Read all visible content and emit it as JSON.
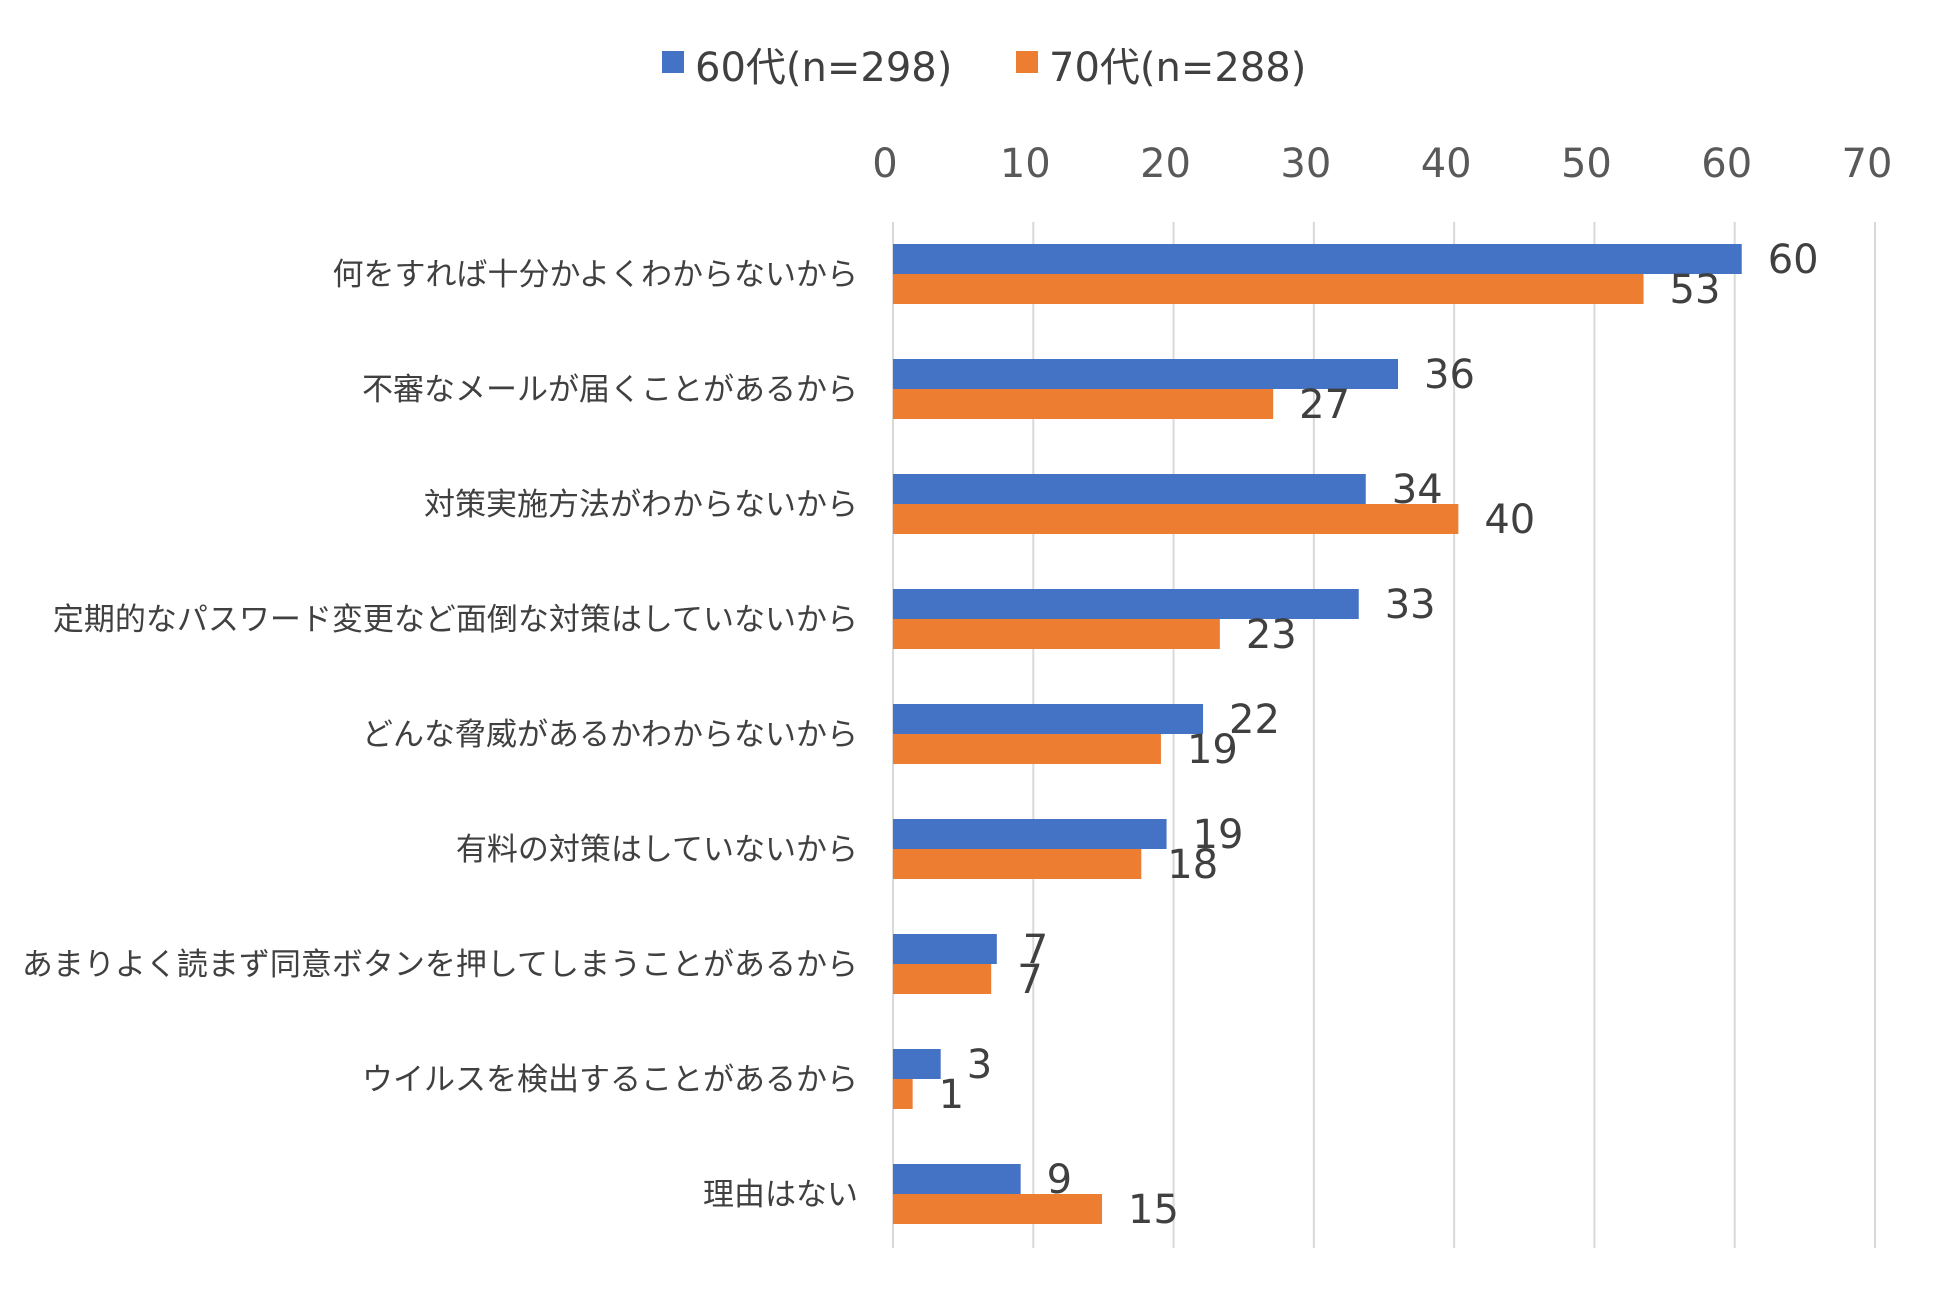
{
  "chart_data": {
    "type": "bar",
    "orientation": "horizontal",
    "title": "",
    "xlabel": "",
    "ylabel": "",
    "xlim": [
      0,
      70
    ],
    "xticks": [
      0,
      10,
      20,
      30,
      40,
      50,
      60,
      70
    ],
    "x_axis_position": "top",
    "grid": true,
    "legend_position": "top",
    "categories": [
      "何をすれば十分かよくわからないから",
      "不審なメールが届くことがあるから",
      "対策実施方法がわからないから",
      "定期的なパスワード変更など面倒な対策はしていないから",
      "どんな脅威があるかわからないから",
      "有料の対策はしていないから",
      "あまりよく読まず同意ボタンを押してしまうことがあるから",
      "ウイルスを検出することがあるから",
      "理由はない"
    ],
    "series": [
      {
        "name": "60代(n=298)",
        "color": "#4472C4",
        "values": [
          60.5,
          36,
          33.7,
          33.2,
          22.1,
          19.5,
          7.4,
          3.4,
          9.1
        ],
        "labels": [
          "60",
          "36",
          "34",
          "33",
          "22",
          "19",
          "7",
          "3",
          "9"
        ]
      },
      {
        "name": "70代(n=288)",
        "color": "#ED7D31",
        "values": [
          53.5,
          27.1,
          40.3,
          23.3,
          19.1,
          17.7,
          7,
          1.4,
          14.9
        ],
        "labels": [
          "53",
          "27",
          "40",
          "23",
          "19",
          "18",
          "7",
          "1",
          "15"
        ]
      }
    ]
  }
}
